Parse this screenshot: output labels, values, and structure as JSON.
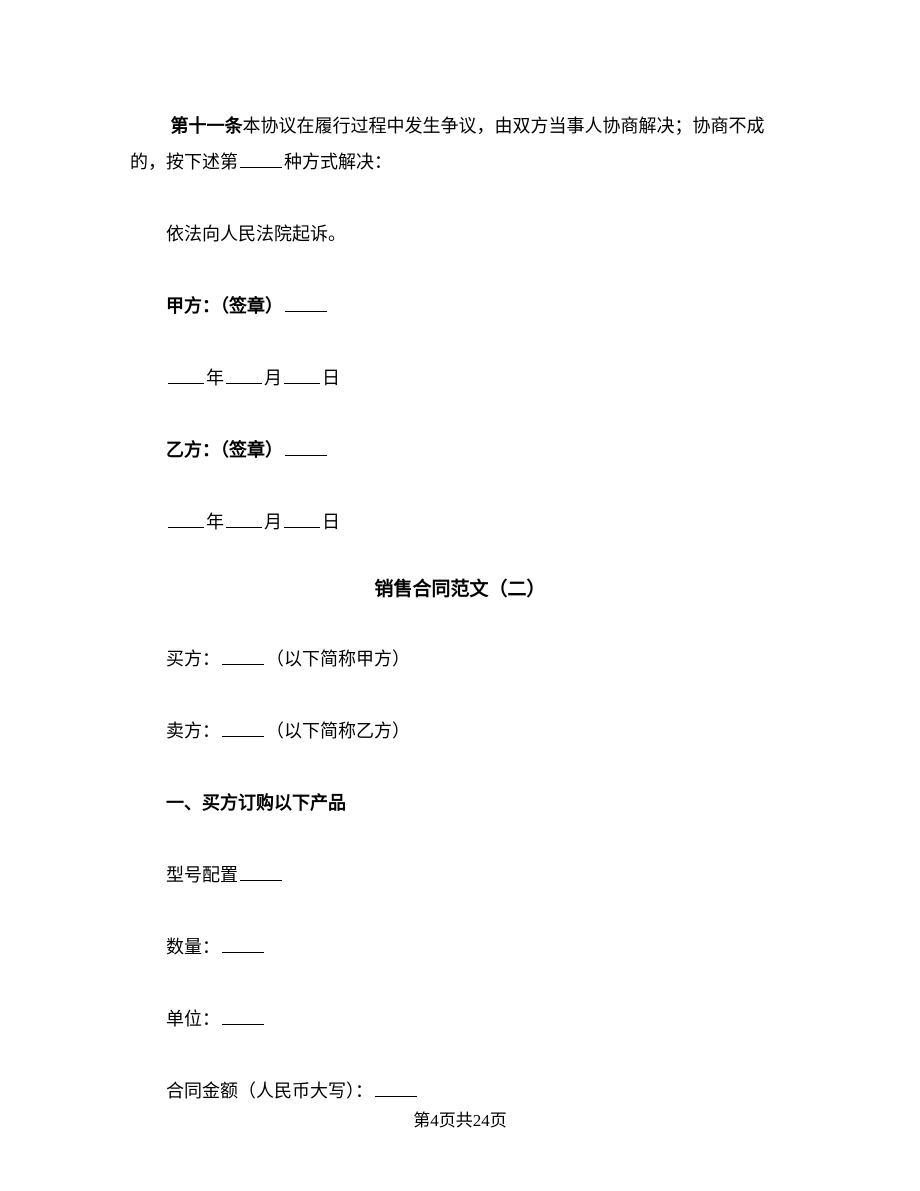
{
  "article11": {
    "label": "第十一条",
    "text_part1": "本协议在履行过程中发生争议，由双方当事人协商解决；协商不成的，按下述第",
    "text_part2": "种方式解决："
  },
  "litigation": "依法向人民法院起诉。",
  "partyA": {
    "label": "甲方：（签章）",
    "date_year": "年",
    "date_month": "月",
    "date_day": "日"
  },
  "partyB": {
    "label": "乙方：（签章）",
    "date_year": "年",
    "date_month": "月",
    "date_day": "日"
  },
  "heading": "销售合同范文（二）",
  "buyer": {
    "prefix": "买方：",
    "suffix": "（以下简称甲方）"
  },
  "seller": {
    "prefix": "卖方：",
    "suffix": "（以下简称乙方）"
  },
  "section1": "一、买方订购以下产品",
  "model": "型号配置",
  "quantity": "数量：",
  "unit": "单位：",
  "amount": "合同金额（人民币大写）：",
  "footer": "第4页共24页"
}
